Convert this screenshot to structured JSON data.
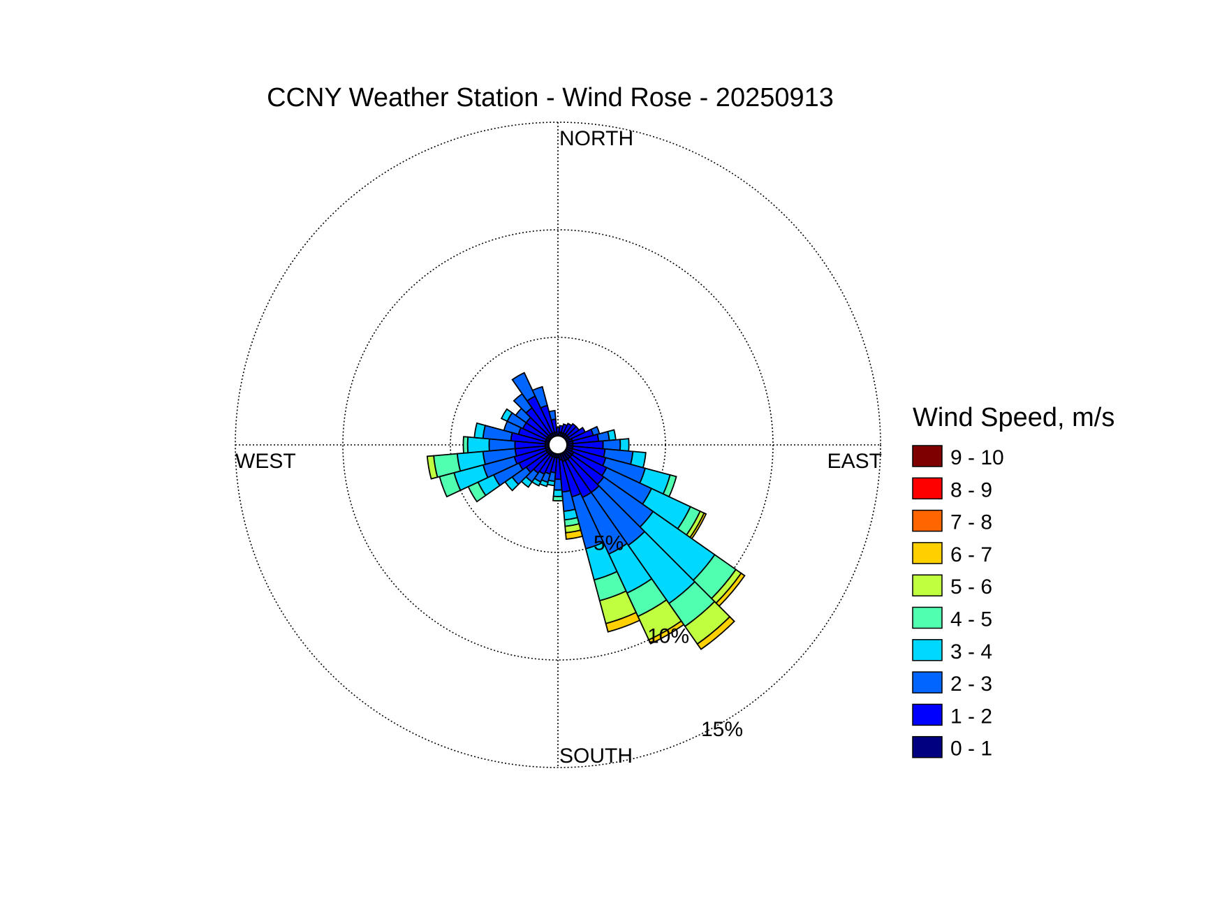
{
  "chart_data": {
    "type": "wind-rose",
    "title": "CCNY Weather Station - Wind Rose - 20250913",
    "directions": {
      "north": "NORTH",
      "south": "SOUTH",
      "east": "EAST",
      "west": "WEST"
    },
    "radial_axis": {
      "unit": "%",
      "max": 15,
      "ticks": [
        5,
        10,
        15
      ],
      "tick_labels": [
        "5%",
        "10%",
        "15%"
      ],
      "grid": "dotted"
    },
    "legend": {
      "title": "Wind Speed, m/s",
      "placement": "right",
      "bins": [
        {
          "label": "9 - 10",
          "color": "#7f0000"
        },
        {
          "label": "8 - 9",
          "color": "#ff0000"
        },
        {
          "label": "7 - 8",
          "color": "#ff6600"
        },
        {
          "label": "6 - 7",
          "color": "#ffd000"
        },
        {
          "label": "5 - 6",
          "color": "#bfff40"
        },
        {
          "label": "4 - 5",
          "color": "#50ffb0"
        },
        {
          "label": "3 - 4",
          "color": "#00d8ff"
        },
        {
          "label": "2 - 3",
          "color": "#0066ff"
        },
        {
          "label": "1 - 2",
          "color": "#0000ff"
        },
        {
          "label": "0 - 1",
          "color": "#000080"
        }
      ]
    },
    "sector_width_deg": 10,
    "sectors": [
      {
        "dir": 0,
        "values": [
          0.5,
          0.3
        ]
      },
      {
        "dir": 10,
        "values": [
          0.6,
          0.3
        ]
      },
      {
        "dir": 20,
        "values": [
          0.6,
          0.4
        ]
      },
      {
        "dir": 30,
        "values": [
          0.6,
          0.5
        ]
      },
      {
        "dir": 40,
        "values": [
          0.6,
          0.6
        ]
      },
      {
        "dir": 50,
        "values": [
          0.6,
          0.6
        ]
      },
      {
        "dir": 60,
        "values": [
          0.6,
          0.8
        ]
      },
      {
        "dir": 70,
        "values": [
          0.7,
          1.0,
          0.3
        ]
      },
      {
        "dir": 80,
        "values": [
          0.7,
          1.2,
          0.5,
          0.3
        ]
      },
      {
        "dir": 90,
        "values": [
          0.7,
          1.4,
          0.8,
          0.4
        ]
      },
      {
        "dir": 100,
        "values": [
          0.7,
          1.5,
          1.3,
          0.6
        ]
      },
      {
        "dir": 110,
        "values": [
          0.7,
          1.6,
          1.9,
          1.2,
          0.3
        ]
      },
      {
        "dir": 120,
        "values": [
          0.8,
          1.7,
          2.3,
          2.0,
          0.5,
          0.2,
          0.1
        ]
      },
      {
        "dir": 130,
        "values": [
          0.8,
          1.8,
          2.8,
          3.5,
          1.2,
          0.3,
          0.2
        ]
      },
      {
        "dir": 140,
        "values": [
          0.8,
          1.9,
          3.0,
          3.3,
          1.3,
          1.0,
          0.3
        ]
      },
      {
        "dir": 150,
        "values": [
          0.8,
          1.9,
          2.9,
          2.0,
          1.2,
          1.2,
          0.2
        ]
      },
      {
        "dir": 160,
        "values": [
          0.8,
          1.7,
          2.5,
          1.5,
          1.0,
          1.1,
          0.4
        ]
      },
      {
        "dir": 170,
        "values": [
          0.7,
          1.5,
          0.9,
          0.4,
          0.3,
          0.3,
          0.3
        ]
      },
      {
        "dir": 180,
        "values": [
          0.6,
          1.0,
          0.5,
          0.3,
          0.2
        ]
      },
      {
        "dir": 190,
        "values": [
          0.6,
          0.7,
          0.4,
          0.2
        ]
      },
      {
        "dir": 200,
        "values": [
          0.6,
          0.8,
          0.4,
          0.2
        ]
      },
      {
        "dir": 210,
        "values": [
          0.6,
          0.9,
          0.4,
          0.2
        ]
      },
      {
        "dir": 220,
        "values": [
          0.6,
          1.0,
          0.5,
          0.3
        ]
      },
      {
        "dir": 230,
        "values": [
          0.6,
          1.2,
          0.8,
          0.4
        ]
      },
      {
        "dir": 240,
        "values": [
          0.6,
          1.4,
          1.3,
          0.8,
          0.5
        ]
      },
      {
        "dir": 250,
        "values": [
          0.6,
          1.5,
          1.5,
          1.4,
          0.7
        ]
      },
      {
        "dir": 260,
        "values": [
          0.6,
          1.4,
          1.5,
          1.2,
          1.1,
          0.3
        ]
      },
      {
        "dir": 270,
        "values": [
          0.6,
          1.4,
          1.2,
          1.0,
          0.2
        ]
      },
      {
        "dir": 280,
        "values": [
          0.6,
          1.6,
          1.3,
          0.4
        ]
      },
      {
        "dir": 290,
        "values": [
          0.6,
          1.3,
          0.7
        ]
      },
      {
        "dir": 300,
        "values": [
          0.6,
          1.2,
          0.8,
          0.3
        ]
      },
      {
        "dir": 310,
        "values": [
          0.6,
          1.2,
          0.6
        ]
      },
      {
        "dir": 320,
        "values": [
          0.6,
          1.5,
          0.8
        ]
      },
      {
        "dir": 330,
        "values": [
          0.6,
          1.9,
          1.2
        ]
      },
      {
        "dir": 340,
        "values": [
          0.6,
          1.3,
          0.9
        ]
      },
      {
        "dir": 350,
        "values": [
          0.6,
          0.6,
          0.4
        ]
      }
    ]
  }
}
